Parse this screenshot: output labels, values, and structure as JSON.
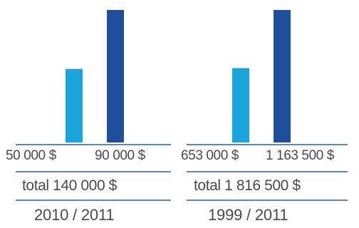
{
  "chart_data": [
    {
      "type": "bar",
      "categories": [
        "2010 / 2011",
        "2010 / 2011"
      ],
      "values": [
        50000,
        90000
      ],
      "value_labels": [
        "50 000 $",
        "90 000 $"
      ],
      "colors": [
        "#1aa6dd",
        "#1f4e9b"
      ],
      "total_label": "total 140 000 $",
      "period": "2010 / 2011",
      "ylim": [
        0,
        90000
      ]
    },
    {
      "type": "bar",
      "categories": [
        "1999 / 2011",
        "1999 / 2011"
      ],
      "values": [
        653000,
        1163500
      ],
      "value_labels": [
        "653 000 $",
        "1 163 500 $"
      ],
      "colors": [
        "#1aa6dd",
        "#1f4e9b"
      ],
      "total_label": "total 1 816 500 $",
      "period": "1999 / 2011",
      "ylim": [
        0,
        1163500
      ]
    }
  ]
}
